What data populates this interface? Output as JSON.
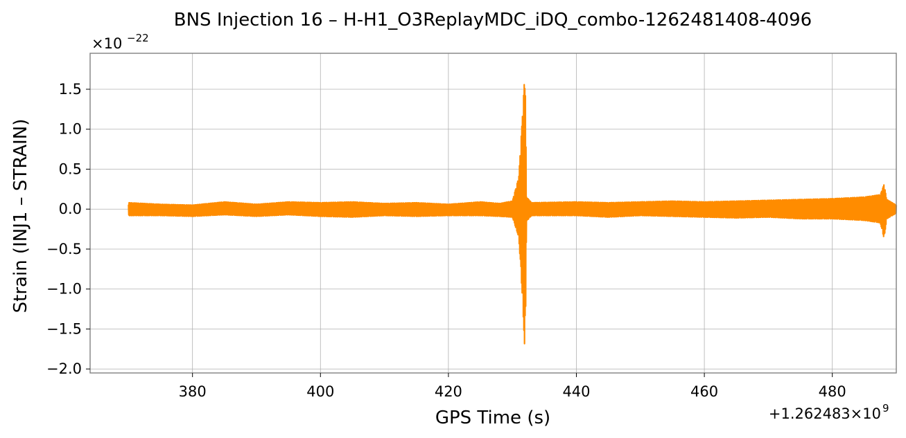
{
  "chart_data": {
    "type": "line",
    "title": "BNS Injection 16 – H-H1_O3ReplayMDC_iDQ_combo-1262481408-4096",
    "xlabel": "GPS Time (s)",
    "ylabel": "Strain (INJ1 – STRAIN)",
    "y_multiplier": "×10",
    "y_multiplier_exp": "−22",
    "x_offset": "+1.262483×10",
    "x_offset_exp": "9",
    "xlim": [
      364,
      490
    ],
    "ylim": [
      -2.05,
      1.95
    ],
    "xticks": [
      380,
      400,
      420,
      440,
      460,
      480
    ],
    "xtick_labels": [
      "380",
      "400",
      "420",
      "440",
      "460",
      "480"
    ],
    "yticks": [
      -2.0,
      -1.5,
      -1.0,
      -0.5,
      0.0,
      0.5,
      1.0,
      1.5
    ],
    "ytick_labels": [
      "−2.0",
      "−1.5",
      "−1.0",
      "−0.5",
      "0.0",
      "0.5",
      "1.0",
      "1.5"
    ],
    "grid": true,
    "color": "#ff8c00",
    "series": [
      {
        "x_range": [
          370.0,
          490.0
        ],
        "envelope": [
          {
            "x": 370.0,
            "hi": 0.08,
            "lo": -0.08
          },
          {
            "x": 375.0,
            "hi": 0.06,
            "lo": -0.08
          },
          {
            "x": 380.0,
            "hi": 0.05,
            "lo": -0.09
          },
          {
            "x": 385.0,
            "hi": 0.09,
            "lo": -0.07
          },
          {
            "x": 390.0,
            "hi": 0.06,
            "lo": -0.09
          },
          {
            "x": 395.0,
            "hi": 0.09,
            "lo": -0.07
          },
          {
            "x": 400.0,
            "hi": 0.08,
            "lo": -0.09
          },
          {
            "x": 405.0,
            "hi": 0.09,
            "lo": -0.1
          },
          {
            "x": 410.0,
            "hi": 0.07,
            "lo": -0.08
          },
          {
            "x": 415.0,
            "hi": 0.08,
            "lo": -0.09
          },
          {
            "x": 420.0,
            "hi": 0.06,
            "lo": -0.08
          },
          {
            "x": 425.0,
            "hi": 0.09,
            "lo": -0.08
          },
          {
            "x": 428.0,
            "hi": 0.07,
            "lo": -0.09
          },
          {
            "x": 430.0,
            "hi": 0.1,
            "lo": -0.1
          },
          {
            "x": 431.0,
            "hi": 0.4,
            "lo": -0.35
          },
          {
            "x": 431.6,
            "hi": 1.2,
            "lo": -1.15
          },
          {
            "x": 432.0,
            "hi": 1.78,
            "lo": -1.88
          },
          {
            "x": 432.2,
            "hi": 0.15,
            "lo": -0.15
          },
          {
            "x": 433.0,
            "hi": 0.08,
            "lo": -0.08
          },
          {
            "x": 440.0,
            "hi": 0.09,
            "lo": -0.08
          },
          {
            "x": 445.0,
            "hi": 0.08,
            "lo": -0.1
          },
          {
            "x": 450.0,
            "hi": 0.09,
            "lo": -0.08
          },
          {
            "x": 455.0,
            "hi": 0.1,
            "lo": -0.09
          },
          {
            "x": 460.0,
            "hi": 0.09,
            "lo": -0.1
          },
          {
            "x": 465.0,
            "hi": 0.1,
            "lo": -0.11
          },
          {
            "x": 470.0,
            "hi": 0.11,
            "lo": -0.1
          },
          {
            "x": 475.0,
            "hi": 0.12,
            "lo": -0.12
          },
          {
            "x": 480.0,
            "hi": 0.13,
            "lo": -0.12
          },
          {
            "x": 485.0,
            "hi": 0.15,
            "lo": -0.14
          },
          {
            "x": 487.5,
            "hi": 0.18,
            "lo": -0.17
          },
          {
            "x": 488.1,
            "hi": 0.31,
            "lo": -0.37
          },
          {
            "x": 488.5,
            "hi": 0.12,
            "lo": -0.12
          },
          {
            "x": 490.0,
            "hi": 0.05,
            "lo": -0.05
          }
        ]
      }
    ]
  }
}
